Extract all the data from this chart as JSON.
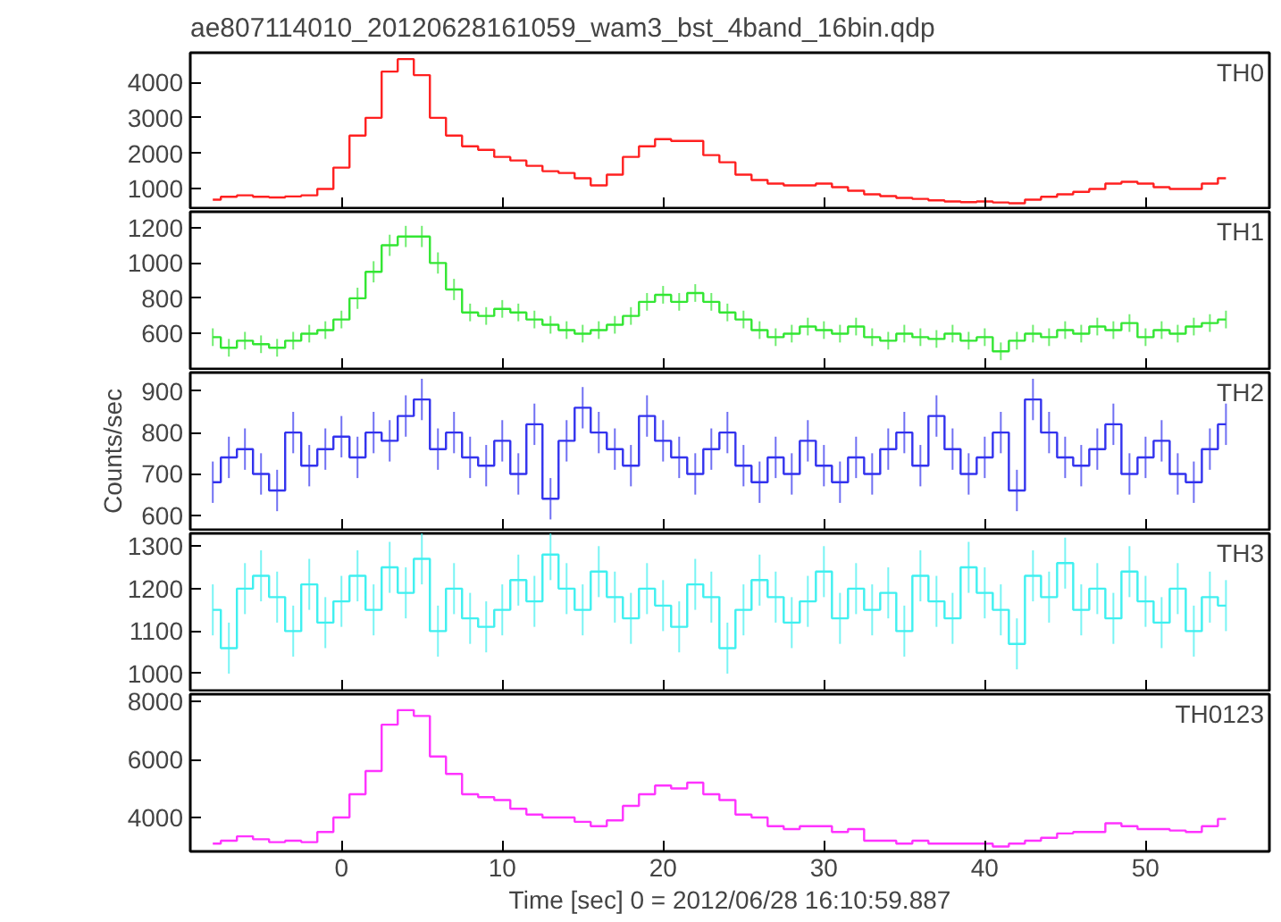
{
  "chart_data": [
    {
      "type": "step",
      "title": "ae807114010_20120628161059_wam3_bst_4band_16bin.qdp",
      "tick_labels": "y",
      "grid": false,
      "legend": false,
      "x": [
        -8,
        -7,
        -6,
        -5,
        -4,
        -3,
        -2,
        -1,
        0,
        1,
        2,
        3,
        4,
        5,
        6,
        7,
        8,
        9,
        10,
        11,
        12,
        13,
        14,
        15,
        16,
        17,
        18,
        19,
        20,
        21,
        22,
        23,
        24,
        25,
        26,
        27,
        28,
        29,
        30,
        31,
        32,
        33,
        34,
        35,
        36,
        37,
        38,
        39,
        40,
        41,
        42,
        43,
        44,
        45,
        46,
        47,
        48,
        49,
        50,
        51,
        52,
        53,
        54,
        55
      ],
      "xlim": [
        -9.4,
        57.7
      ],
      "xticks": [
        0,
        10,
        20,
        30,
        40,
        50
      ],
      "ylim": [
        460,
        4830
      ],
      "yticks": [
        1000,
        2000,
        3000,
        4000
      ],
      "series": [
        {
          "name": "TH0",
          "color": "#ff2020",
          "values": [
            700,
            780,
            820,
            780,
            760,
            790,
            820,
            1000,
            1600,
            2500,
            3000,
            4300,
            4650,
            4200,
            3000,
            2500,
            2200,
            2100,
            1900,
            1800,
            1650,
            1500,
            1450,
            1300,
            1100,
            1400,
            1900,
            2200,
            2400,
            2350,
            2350,
            1950,
            1750,
            1400,
            1250,
            1150,
            1100,
            1100,
            1150,
            1050,
            950,
            850,
            800,
            750,
            720,
            680,
            650,
            630,
            650,
            620,
            600,
            700,
            780,
            850,
            920,
            1000,
            1150,
            1200,
            1150,
            1050,
            1000,
            1000,
            1150,
            1300
          ]
        }
      ]
    },
    {
      "type": "step",
      "tick_labels": "y",
      "grid": false,
      "legend": false,
      "x": [
        -8,
        -7,
        -6,
        -5,
        -4,
        -3,
        -2,
        -1,
        0,
        1,
        2,
        3,
        4,
        5,
        6,
        7,
        8,
        9,
        10,
        11,
        12,
        13,
        14,
        15,
        16,
        17,
        18,
        19,
        20,
        21,
        22,
        23,
        24,
        25,
        26,
        27,
        28,
        29,
        30,
        31,
        32,
        33,
        34,
        35,
        36,
        37,
        38,
        39,
        40,
        41,
        42,
        43,
        44,
        45,
        46,
        47,
        48,
        49,
        50,
        51,
        52,
        53,
        54,
        55
      ],
      "xlim": [
        -9.4,
        57.7
      ],
      "xticks": [
        0,
        10,
        20,
        30,
        40,
        50
      ],
      "ylim": [
        400,
        1290
      ],
      "yticks": [
        600,
        800,
        1000,
        1200
      ],
      "series": [
        {
          "name": "TH1",
          "color": "#33e633",
          "values": [
            580,
            520,
            560,
            540,
            520,
            560,
            600,
            620,
            680,
            800,
            950,
            1100,
            1150,
            1150,
            1000,
            850,
            720,
            700,
            740,
            720,
            680,
            650,
            620,
            600,
            620,
            650,
            700,
            780,
            820,
            780,
            830,
            780,
            720,
            680,
            620,
            580,
            600,
            640,
            620,
            600,
            640,
            580,
            560,
            600,
            580,
            570,
            600,
            560,
            580,
            500,
            560,
            600,
            580,
            620,
            600,
            640,
            620,
            660,
            580,
            620,
            600,
            640,
            660,
            680
          ],
          "errors": [
            50,
            50,
            50,
            50,
            50,
            50,
            50,
            50,
            50,
            60,
            60,
            60,
            60,
            60,
            60,
            60,
            50,
            50,
            50,
            50,
            50,
            50,
            50,
            50,
            50,
            50,
            50,
            50,
            50,
            50,
            50,
            50,
            50,
            50,
            50,
            50,
            50,
            50,
            50,
            50,
            50,
            50,
            50,
            50,
            50,
            50,
            50,
            50,
            50,
            50,
            50,
            50,
            50,
            50,
            50,
            50,
            50,
            50,
            50,
            50,
            50,
            50,
            50,
            50
          ]
        }
      ]
    },
    {
      "type": "step",
      "ylabel": "Counts/sec",
      "tick_labels": "y",
      "grid": false,
      "legend": false,
      "x": [
        -8,
        -7,
        -6,
        -5,
        -4,
        -3,
        -2,
        -1,
        0,
        1,
        2,
        3,
        4,
        5,
        6,
        7,
        8,
        9,
        10,
        11,
        12,
        13,
        14,
        15,
        16,
        17,
        18,
        19,
        20,
        21,
        22,
        23,
        24,
        25,
        26,
        27,
        28,
        29,
        30,
        31,
        32,
        33,
        34,
        35,
        36,
        37,
        38,
        39,
        40,
        41,
        42,
        43,
        44,
        45,
        46,
        47,
        48,
        49,
        50,
        51,
        52,
        53,
        54,
        55
      ],
      "xlim": [
        -9.4,
        57.7
      ],
      "xticks": [
        0,
        10,
        20,
        30,
        40,
        50
      ],
      "ylim": [
        565,
        945
      ],
      "yticks": [
        600,
        700,
        800,
        900
      ],
      "series": [
        {
          "name": "TH2",
          "color": "#3333ee",
          "values": [
            680,
            740,
            760,
            700,
            660,
            800,
            720,
            760,
            790,
            740,
            800,
            780,
            840,
            880,
            760,
            800,
            740,
            720,
            780,
            700,
            820,
            640,
            780,
            860,
            800,
            760,
            720,
            840,
            780,
            740,
            700,
            760,
            800,
            720,
            680,
            740,
            700,
            780,
            720,
            680,
            740,
            700,
            760,
            800,
            720,
            840,
            760,
            700,
            740,
            800,
            660,
            880,
            800,
            740,
            720,
            760,
            820,
            700,
            740,
            780,
            700,
            680,
            760,
            820
          ],
          "errors": [
            50,
            50,
            50,
            50,
            50,
            50,
            50,
            50,
            50,
            50,
            50,
            50,
            50,
            50,
            50,
            50,
            50,
            50,
            50,
            50,
            50,
            50,
            50,
            50,
            50,
            50,
            50,
            50,
            50,
            50,
            50,
            50,
            50,
            50,
            50,
            50,
            50,
            50,
            50,
            50,
            50,
            50,
            50,
            50,
            50,
            50,
            50,
            50,
            50,
            50,
            50,
            50,
            50,
            50,
            50,
            50,
            50,
            50,
            50,
            50,
            50,
            50,
            50,
            50
          ]
        }
      ]
    },
    {
      "type": "step",
      "tick_labels": "y",
      "grid": false,
      "legend": false,
      "x": [
        -8,
        -7,
        -6,
        -5,
        -4,
        -3,
        -2,
        -1,
        0,
        1,
        2,
        3,
        4,
        5,
        6,
        7,
        8,
        9,
        10,
        11,
        12,
        13,
        14,
        15,
        16,
        17,
        18,
        19,
        20,
        21,
        22,
        23,
        24,
        25,
        26,
        27,
        28,
        29,
        30,
        31,
        32,
        33,
        34,
        35,
        36,
        37,
        38,
        39,
        40,
        41,
        42,
        43,
        44,
        45,
        46,
        47,
        48,
        49,
        50,
        51,
        52,
        53,
        54,
        55
      ],
      "xlim": [
        -9.4,
        57.7
      ],
      "xticks": [
        0,
        10,
        20,
        30,
        40,
        50
      ],
      "ylim": [
        960,
        1330
      ],
      "yticks": [
        1000,
        1100,
        1200,
        1300
      ],
      "series": [
        {
          "name": "TH3",
          "color": "#40f0f0",
          "values": [
            1150,
            1060,
            1200,
            1230,
            1180,
            1100,
            1210,
            1120,
            1170,
            1230,
            1150,
            1250,
            1190,
            1270,
            1100,
            1200,
            1130,
            1110,
            1150,
            1220,
            1170,
            1280,
            1200,
            1150,
            1240,
            1180,
            1130,
            1200,
            1160,
            1110,
            1210,
            1180,
            1060,
            1150,
            1220,
            1180,
            1120,
            1170,
            1240,
            1130,
            1200,
            1150,
            1190,
            1100,
            1230,
            1170,
            1130,
            1250,
            1190,
            1150,
            1070,
            1230,
            1180,
            1260,
            1150,
            1200,
            1130,
            1240,
            1170,
            1120,
            1200,
            1100,
            1180,
            1160
          ],
          "errors": [
            60,
            60,
            60,
            60,
            60,
            60,
            60,
            60,
            60,
            60,
            60,
            60,
            60,
            60,
            60,
            60,
            60,
            60,
            60,
            60,
            60,
            60,
            60,
            60,
            60,
            60,
            60,
            60,
            60,
            60,
            60,
            60,
            60,
            60,
            60,
            60,
            60,
            60,
            60,
            60,
            60,
            60,
            60,
            60,
            60,
            60,
            60,
            60,
            60,
            60,
            60,
            60,
            60,
            60,
            60,
            60,
            60,
            60,
            60,
            60,
            60,
            60,
            60,
            60
          ]
        }
      ]
    },
    {
      "type": "step",
      "xlabel": "Time [sec] 0 = 2012/06/28 16:10:59.887",
      "grid": false,
      "legend": false,
      "x": [
        -8,
        -7,
        -6,
        -5,
        -4,
        -3,
        -2,
        -1,
        0,
        1,
        2,
        3,
        4,
        5,
        6,
        7,
        8,
        9,
        10,
        11,
        12,
        13,
        14,
        15,
        16,
        17,
        18,
        19,
        20,
        21,
        22,
        23,
        24,
        25,
        26,
        27,
        28,
        29,
        30,
        31,
        32,
        33,
        34,
        35,
        36,
        37,
        38,
        39,
        40,
        41,
        42,
        43,
        44,
        45,
        46,
        47,
        48,
        49,
        50,
        51,
        52,
        53,
        54,
        55
      ],
      "xlim": [
        -9.4,
        57.7
      ],
      "xticks": [
        0,
        10,
        20,
        30,
        40,
        50
      ],
      "ylim": [
        2830,
        8250
      ],
      "yticks": [
        4000,
        6000,
        8000
      ],
      "series": [
        {
          "name": "TH0123",
          "color": "#ff33ff",
          "values": [
            3100,
            3200,
            3350,
            3250,
            3150,
            3200,
            3150,
            3500,
            4000,
            4800,
            5600,
            7200,
            7700,
            7500,
            6100,
            5500,
            4800,
            4700,
            4600,
            4300,
            4100,
            4000,
            4000,
            3850,
            3700,
            3900,
            4400,
            4800,
            5100,
            5000,
            5200,
            4800,
            4600,
            4100,
            4000,
            3700,
            3600,
            3700,
            3700,
            3500,
            3600,
            3200,
            3200,
            3100,
            3200,
            3100,
            3100,
            3100,
            3100,
            3000,
            3100,
            3200,
            3300,
            3450,
            3500,
            3500,
            3800,
            3700,
            3600,
            3600,
            3550,
            3500,
            3700,
            3950
          ]
        }
      ]
    }
  ]
}
